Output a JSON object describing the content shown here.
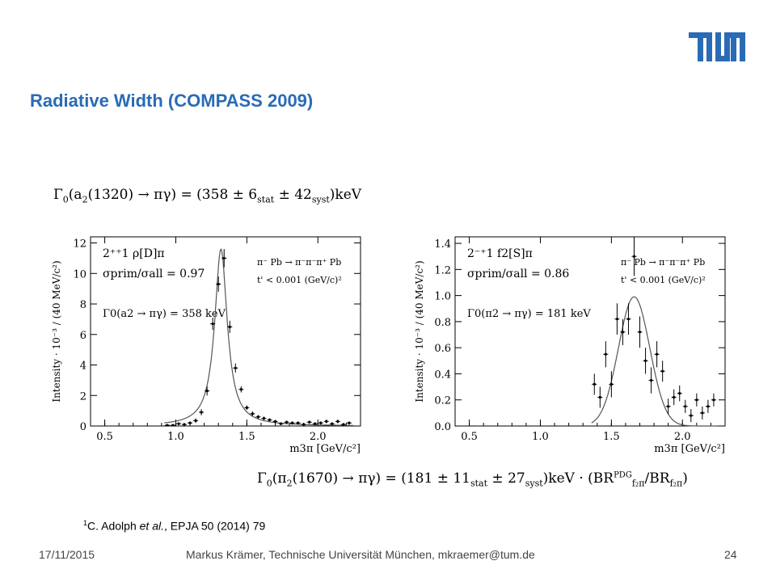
{
  "brand": {
    "logo_text": "TUM",
    "color": "#2a6bb5"
  },
  "title": "Radiative Width (COMPASS 2009)",
  "formula_a2": {
    "lhs": "Γ",
    "lhs_sub": "0",
    "arg": "(a",
    "arg_sub": "2",
    "arg_rest": "(1320) → πγ) = (358 ± 6",
    "stat": "stat",
    "pm": " ± 42",
    "syst": "syst",
    "unit": ")keV"
  },
  "formula_pi2": {
    "lhs": "Γ",
    "lhs_sub": "0",
    "arg": "(π",
    "arg_sub": "2",
    "arg_rest": "(1670) → πγ) = (181 ± 11",
    "stat": "stat",
    "pm": " ± 27",
    "syst": "syst",
    "unit": ")keV · (BR",
    "br_sup": "PDG",
    "br_sub": "f₂π",
    "br_div": "/BR",
    "br_sub2": "f₂π",
    "close": ")"
  },
  "reference": {
    "sup": "1",
    "pre": "C. Adolph ",
    "etal": "et al.",
    "post": ", EPJA 50 (2014) 79"
  },
  "footer": {
    "date": "17/11/2015",
    "author": "Markus Krämer, Technische Universität München, mkraemer@tum.de",
    "page": "24"
  },
  "chart_data": [
    {
      "type": "scatter",
      "title": "",
      "xlabel": "m3π [GeV/c²]",
      "ylabel": "Intensity · 10⁻³ / (40 MeV/c²)",
      "xlim": [
        0.4,
        2.3
      ],
      "ylim": [
        0,
        12.4
      ],
      "xticks": [
        "0.5",
        "1.0",
        "1.5",
        "2.0"
      ],
      "xtick_values": [
        0.5,
        1.0,
        1.5,
        2.0
      ],
      "yticks": [
        "0",
        "2",
        "4",
        "6",
        "8",
        "10",
        "12"
      ],
      "ytick_values": [
        0,
        2,
        4,
        6,
        8,
        10,
        12
      ],
      "annotations": [
        "2⁺⁺1 ρ[D]π",
        "σprim/σall = 0.97",
        "π⁻ Pb → π⁻π⁻π⁺ Pb",
        "t' < 0.001 (GeV/c)²",
        "Γ0(a2 → πγ) = 358 keV"
      ],
      "series": [
        {
          "name": "data",
          "x": [
            0.94,
            0.98,
            1.02,
            1.06,
            1.1,
            1.14,
            1.18,
            1.22,
            1.26,
            1.3,
            1.34,
            1.38,
            1.42,
            1.46,
            1.5,
            1.54,
            1.58,
            1.62,
            1.66,
            1.7,
            1.74,
            1.78,
            1.82,
            1.86,
            1.9,
            1.94,
            1.98,
            2.02,
            2.06,
            2.1,
            2.14,
            2.18,
            2.22
          ],
          "y": [
            0.05,
            0.05,
            0.15,
            0.1,
            0.2,
            0.35,
            0.9,
            2.3,
            6.7,
            9.3,
            11.0,
            6.5,
            3.8,
            2.4,
            1.2,
            0.8,
            0.6,
            0.5,
            0.4,
            0.3,
            0.15,
            0.25,
            0.2,
            0.2,
            0.1,
            0.25,
            0.15,
            0.2,
            0.3,
            0.15,
            0.3,
            0.1,
            0.2
          ],
          "yerr": [
            0.05,
            0.05,
            0.1,
            0.1,
            0.1,
            0.15,
            0.2,
            0.3,
            0.4,
            0.5,
            0.6,
            0.4,
            0.3,
            0.2,
            0.15,
            0.15,
            0.12,
            0.12,
            0.1,
            0.1,
            0.1,
            0.1,
            0.1,
            0.1,
            0.1,
            0.1,
            0.1,
            0.1,
            0.12,
            0.1,
            0.12,
            0.1,
            0.1
          ]
        },
        {
          "name": "fit",
          "model": "breit-wigner",
          "peak": 1.318,
          "gamma": 0.107,
          "amplitude": 11.6
        }
      ]
    },
    {
      "type": "scatter",
      "title": "",
      "xlabel": "m3π [GeV/c²]",
      "ylabel": "Intensity · 10⁻³ / (40 MeV/c²)",
      "xlim": [
        0.4,
        2.3
      ],
      "ylim": [
        0,
        1.45
      ],
      "xticks": [
        "0.5",
        "1.0",
        "1.5",
        "2.0"
      ],
      "xtick_values": [
        0.5,
        1.0,
        1.5,
        2.0
      ],
      "yticks": [
        "0.0",
        "0.2",
        "0.4",
        "0.6",
        "0.8",
        "1.0",
        "1.2",
        "1.4"
      ],
      "ytick_values": [
        0.0,
        0.2,
        0.4,
        0.6,
        0.8,
        1.0,
        1.2,
        1.4
      ],
      "annotations": [
        "2⁻⁺1 f2[S]π",
        "σprim/σall = 0.86",
        "π⁻ Pb → π⁻π⁻π⁺ Pb",
        "t' < 0.001 (GeV/c)²",
        "Γ0(π2 → πγ) = 181 keV"
      ],
      "series": [
        {
          "name": "data",
          "x": [
            1.38,
            1.42,
            1.46,
            1.5,
            1.54,
            1.58,
            1.62,
            1.66,
            1.7,
            1.74,
            1.78,
            1.82,
            1.86,
            1.9,
            1.94,
            1.98,
            2.02,
            2.06,
            2.1,
            2.14,
            2.18,
            2.22
          ],
          "y": [
            0.32,
            0.22,
            0.55,
            0.32,
            0.82,
            0.72,
            0.82,
            1.3,
            0.72,
            0.5,
            0.35,
            0.55,
            0.42,
            0.15,
            0.22,
            0.25,
            0.15,
            0.08,
            0.2,
            0.1,
            0.15,
            0.2
          ],
          "yerr": [
            0.08,
            0.08,
            0.1,
            0.1,
            0.12,
            0.1,
            0.12,
            0.15,
            0.12,
            0.1,
            0.1,
            0.1,
            0.08,
            0.06,
            0.06,
            0.06,
            0.05,
            0.05,
            0.05,
            0.05,
            0.05,
            0.05
          ]
        },
        {
          "name": "fit",
          "model": "gaussian",
          "peak": 1.66,
          "sigma": 0.11,
          "amplitude": 0.99
        }
      ]
    }
  ]
}
